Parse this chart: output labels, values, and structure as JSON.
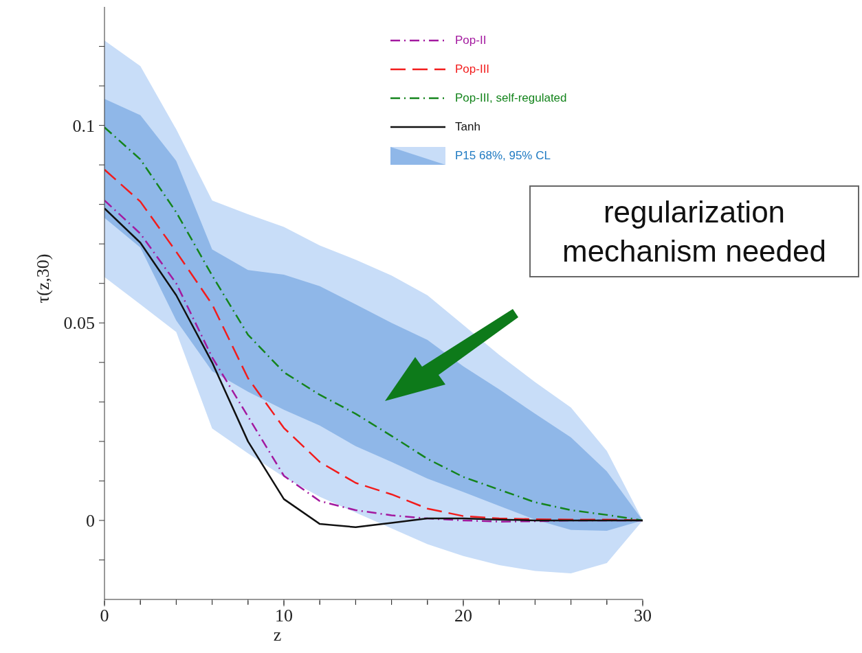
{
  "chart_data": {
    "type": "line",
    "xlabel": "z",
    "ylabel": "τ(z,30)",
    "x": [
      0,
      2,
      4,
      6,
      8,
      10,
      12,
      14,
      16,
      18,
      20,
      22,
      24,
      26,
      28,
      30
    ],
    "xlim": [
      0,
      30
    ],
    "xticks": [
      0,
      {
        "value": 2,
        "label": null
      },
      {
        "value": 4,
        "label": null
      },
      {
        "value": 6,
        "label": null
      },
      {
        "value": 8,
        "label": null
      },
      10,
      {
        "value": 12,
        "label": null
      },
      {
        "value": 14,
        "label": null
      },
      {
        "value": 16,
        "label": null
      },
      {
        "value": 18,
        "label": null
      },
      20,
      {
        "value": 22,
        "label": null
      },
      {
        "value": 24,
        "label": null
      },
      {
        "value": 26,
        "label": null
      },
      {
        "value": 28,
        "label": null
      },
      30
    ],
    "ylim": [
      -0.02,
      0.13
    ],
    "yticks": [
      {
        "value": -0.01,
        "label": null
      },
      0,
      {
        "value": 0.01,
        "label": null
      },
      {
        "value": 0.02,
        "label": null
      },
      {
        "value": 0.03,
        "label": null
      },
      {
        "value": 0.04,
        "label": null
      },
      0.05,
      {
        "value": 0.06,
        "label": null
      },
      {
        "value": 0.07,
        "label": null
      },
      {
        "value": 0.08,
        "label": null
      },
      {
        "value": 0.09,
        "label": null
      },
      0.1,
      {
        "value": 0.11,
        "label": null
      },
      {
        "value": 0.12,
        "label": null
      }
    ],
    "legend": "top right",
    "grid": false,
    "series": [
      {
        "type": "area",
        "color": "#c8ddf8",
        "values": [
          null,
          null,
          null,
          null,
          null,
          null,
          null,
          null,
          null,
          null,
          null,
          null,
          null,
          null,
          null,
          null
        ],
        "lower": [
          0.0616,
          0.0547,
          0.0477,
          0.0233,
          0.017,
          0.011,
          0.006,
          0.002,
          -0.002,
          -0.006,
          -0.009,
          -0.0113,
          -0.0128,
          -0.0134,
          -0.0108,
          0
        ],
        "upper": [
          0.1215,
          0.115,
          0.099,
          0.081,
          0.0775,
          0.0743,
          0.0696,
          0.066,
          0.062,
          0.057,
          0.0495,
          0.0419,
          0.035,
          0.0286,
          0.0176,
          0
        ]
      },
      {
        "type": "area",
        "name": "P15 68%, 95% CL",
        "color": "#8fb7e8",
        "values": [
          null,
          null,
          null,
          null,
          null,
          null,
          null,
          null,
          null,
          null,
          null,
          null,
          null,
          null,
          null,
          null
        ],
        "lower": [
          0.0766,
          0.0691,
          0.0506,
          0.0378,
          0.0326,
          0.028,
          0.024,
          0.0188,
          0.0148,
          0.0106,
          0.0072,
          0.0037,
          0.0002,
          -0.0024,
          -0.0026,
          0
        ],
        "upper": [
          0.1067,
          0.1026,
          0.091,
          0.0686,
          0.0634,
          0.0622,
          0.0593,
          0.0547,
          0.05,
          0.0457,
          0.039,
          0.0332,
          0.027,
          0.021,
          0.0124,
          0
        ]
      },
      {
        "name": "Pop-II",
        "color": "#a3199f",
        "line_style": "dashdot",
        "values": [
          0.081,
          0.0726,
          0.06,
          0.0413,
          0.0263,
          0.0113,
          0.0049,
          0.0026,
          0.0013,
          0.0005,
          0,
          -0.0003,
          -0.0002,
          0,
          0,
          0
        ]
      },
      {
        "name": "Pop-III",
        "color": "#f21c1c",
        "line_style": "dashed",
        "values": [
          0.0888,
          0.0807,
          0.068,
          0.0547,
          0.036,
          0.0234,
          0.0148,
          0.0095,
          0.0066,
          0.003,
          0.0011,
          0.0005,
          0.0003,
          0.0002,
          0.0002,
          0
        ]
      },
      {
        "name": "Pop-III, self-regulated",
        "color": "#14841c",
        "line_style": "dashdot",
        "values": [
          0.0995,
          0.0914,
          0.078,
          0.062,
          0.047,
          0.0375,
          0.0318,
          0.027,
          0.0214,
          0.0156,
          0.011,
          0.0078,
          0.0046,
          0.0026,
          0.0014,
          0
        ]
      },
      {
        "name": "Tanh",
        "color": "#111111",
        "line_style": "solid",
        "values": [
          0.079,
          0.0703,
          0.057,
          0.04,
          0.02,
          0.0054,
          -0.0009,
          -0.0017,
          -0.0006,
          0.0005,
          0.0005,
          0.0002,
          0,
          0,
          0,
          0
        ]
      }
    ],
    "annotations": [
      "regularization\nmechanism needed"
    ]
  }
}
